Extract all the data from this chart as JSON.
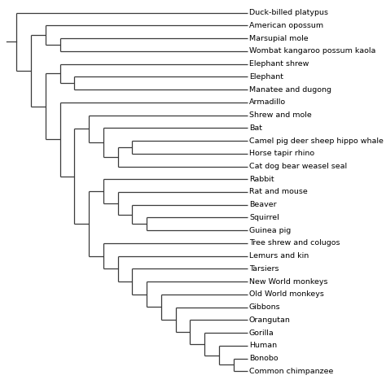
{
  "taxa": [
    "Duck-billed platypus",
    "American opossum",
    "Marsupial mole",
    "Wombat kangaroo possum kaola",
    "Elephant shrew",
    "Elephant",
    "Manatee and dugong",
    "Armadillo",
    "Shrew and mole",
    "Bat",
    "Camel pig deer sheep hippo whale",
    "Horse tapir rhino",
    "Cat dog bear weasel seal",
    "Rabbit",
    "Rat and mouse",
    "Beaver",
    "Squirrel",
    "Guinea pig",
    "Tree shrew and colugos",
    "Lemurs and kin",
    "Tarsiers",
    "New World monkeys",
    "Old World monkeys",
    "Gibbons",
    "Orangutan",
    "Gorilla",
    "Human",
    "Bonobo",
    "Common chimpanzee"
  ],
  "background_color": "#ffffff",
  "line_color": "#3a3a3a",
  "font_size": 6.8,
  "fig_width": 4.74,
  "fig_height": 4.72,
  "dpi": 100
}
